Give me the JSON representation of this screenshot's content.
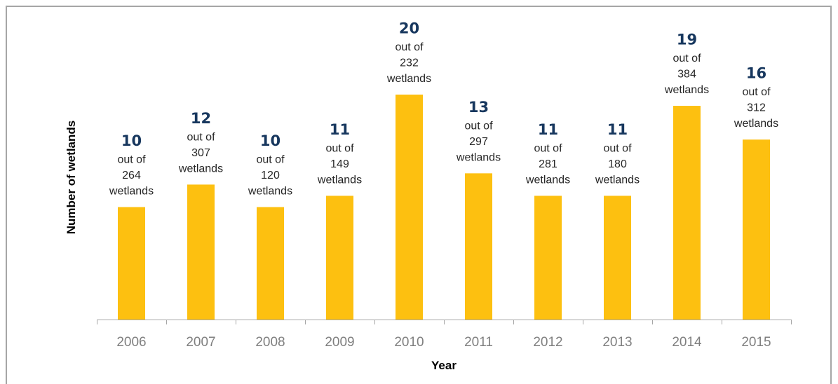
{
  "chart_data": {
    "type": "bar",
    "categories": [
      "2006",
      "2007",
      "2008",
      "2009",
      "2010",
      "2011",
      "2012",
      "2013",
      "2014",
      "2015"
    ],
    "values": [
      10,
      12,
      10,
      11,
      20,
      13,
      11,
      11,
      19,
      16
    ],
    "totals": [
      264,
      307,
      120,
      149,
      232,
      297,
      281,
      180,
      384,
      312
    ],
    "annotation_prefix": "out of",
    "annotation_suffix": "wetlands",
    "xlabel": "Year",
    "ylabel": "Number of wetlands",
    "ylim": [
      0,
      21.5
    ],
    "grid": false,
    "legend": "none",
    "colors": {
      "bar": "#FDC010",
      "value_label": "#17375e",
      "axis": "#a6a6a6"
    }
  }
}
